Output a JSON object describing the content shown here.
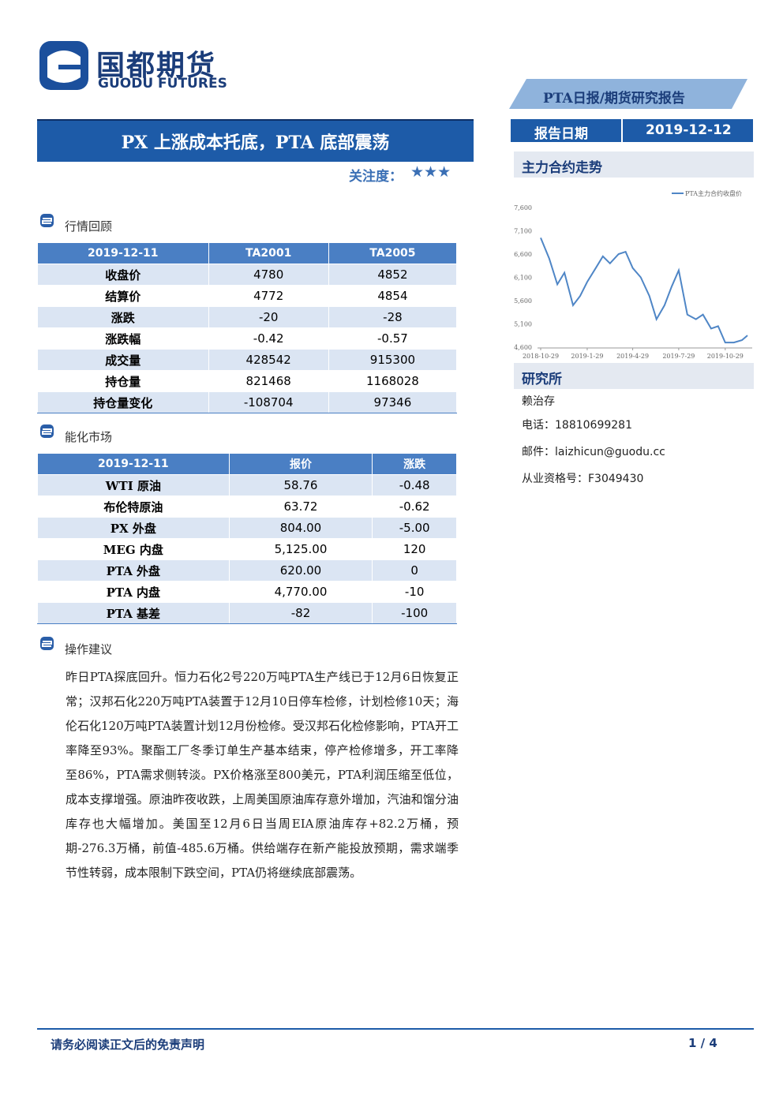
{
  "header": {
    "logo_cn": "国都期货",
    "logo_en": "GUODU FUTURES",
    "banner": "PTA日报/期货研究报告",
    "date_label": "报告日期",
    "date": "2019-12-12"
  },
  "title": "PX 上涨成本托底，PTA 底部震荡",
  "attention": {
    "label": "关注度：",
    "stars": "★★★"
  },
  "sections": {
    "market": "行情回顾",
    "energy": "能化市场",
    "advice": "操作建议"
  },
  "table1": {
    "header": [
      "2019-12-11",
      "TA2001",
      "TA2005"
    ],
    "rows": [
      [
        "收盘价",
        "4780",
        "4852"
      ],
      [
        "结算价",
        "4772",
        "4854"
      ],
      [
        "涨跌",
        "-20",
        "-28"
      ],
      [
        "涨跌幅",
        "-0.42",
        "-0.57"
      ],
      [
        "成交量",
        "428542",
        "915300"
      ],
      [
        "持仓量",
        "821468",
        "1168028"
      ],
      [
        "持仓量变化",
        "-108704",
        "97346"
      ]
    ]
  },
  "table2": {
    "header": [
      "2019-12-11",
      "报价",
      "涨跌"
    ],
    "rows": [
      [
        "WTI 原油",
        "58.76",
        "-0.48"
      ],
      [
        "布伦特原油",
        "63.72",
        "-0.62"
      ],
      [
        "PX 外盘",
        "804.00",
        "-5.00"
      ],
      [
        "MEG 内盘",
        "5,125.00",
        "120"
      ],
      [
        "PTA 外盘",
        "620.00",
        "0"
      ],
      [
        "PTA 内盘",
        "4,770.00",
        "-10"
      ],
      [
        "PTA 基差",
        "-82",
        "-100"
      ]
    ]
  },
  "advice_text": "昨日PTA探底回升。恒力石化2号220万吨PTA生产线已于12月6日恢复正常；汉邦石化220万吨PTA装置于12月10日停车检修，计划检修10天；海伦石化120万吨PTA装置计划12月份检修。受汉邦石化检修影响，PTA开工率降至93%。聚酯工厂冬季订单生产基本结束，停产检修增多，开工率降至86%，PTA需求侧转淡。PX价格涨至800美元，PTA利润压缩至低位，成本支撑增强。原油昨夜收跌，上周美国原油库存意外增加，汽油和馏分油库存也大幅增加。美国至12月6日当周EIA原油库存+82.2万桶，预期-276.3万桶，前值-485.6万桶。供给端存在新产能投放预期，需求端季节性转弱，成本限制下跌空间，PTA仍将继续底部震荡。",
  "sidebar": {
    "chart_heading": "主力合约走势",
    "institute": "研究所",
    "analyst": "赖治存",
    "phone": "电话：18810699281",
    "email": "邮件：laizhicun@guodu.cc",
    "license": "从业资格号：F3049430"
  },
  "chart_data": {
    "type": "line",
    "x": [
      "2018-10-29",
      "2018-11-15",
      "2018-12-1",
      "2018-12-15",
      "2019-1-1",
      "2019-1-15",
      "2019-1-29",
      "2019-2-15",
      "2019-3-1",
      "2019-3-15",
      "2019-4-1",
      "2019-4-15",
      "2019-4-29",
      "2019-5-15",
      "2019-6-1",
      "2019-6-15",
      "2019-7-1",
      "2019-7-15",
      "2019-7-29",
      "2019-8-15",
      "2019-9-1",
      "2019-9-15",
      "2019-10-1",
      "2019-10-15",
      "2019-10-29",
      "2019-11-15",
      "2019-12-1",
      "2019-12-12"
    ],
    "series": [
      {
        "name": "PTA主力合约收盘价",
        "color": "#4f86c6",
        "values": [
          6950,
          6500,
          5950,
          6200,
          5500,
          5700,
          6000,
          6300,
          6550,
          6400,
          6600,
          6650,
          6300,
          6100,
          5700,
          5200,
          5500,
          5900,
          6250,
          5300,
          5200,
          5300,
          5000,
          5050,
          4700,
          4700,
          4750,
          4852
        ]
      }
    ],
    "ylim": [
      4600,
      7600
    ],
    "yticks": [
      {
        "value": 4600,
        "label": "4,600"
      },
      {
        "value": 5100,
        "label": "5,100"
      },
      {
        "value": 5600,
        "label": "5,600"
      },
      {
        "value": 6100,
        "label": "6,100"
      },
      {
        "value": 6600,
        "label": "6,600"
      },
      {
        "value": 7100,
        "label": "7,100"
      },
      {
        "value": 7600,
        "label": "7,600"
      }
    ],
    "xticks": [
      "2018-10-29",
      "2019-1-29",
      "2019-4-29",
      "2019-7-29",
      "2019-10-29"
    ],
    "grid": false
  },
  "footer": {
    "disclaimer": "请务必阅读正文后的免责声明",
    "page": "1 / 4"
  }
}
